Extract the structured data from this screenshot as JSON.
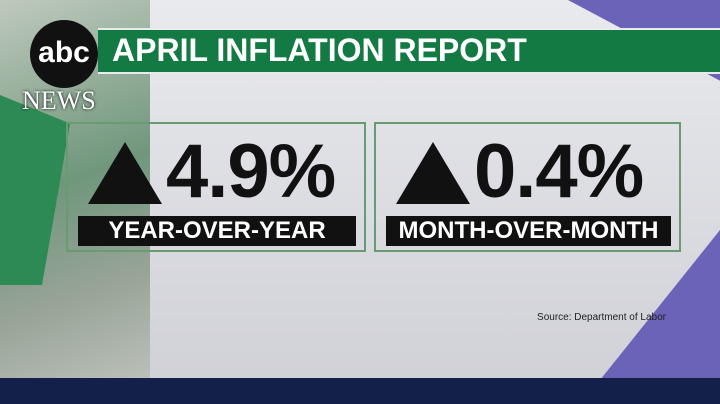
{
  "logo": {
    "name": "abc",
    "sub": "NEWS"
  },
  "header": {
    "title": "APRIL INFLATION REPORT"
  },
  "stats": [
    {
      "value": "4.9%",
      "label": "YEAR-OVER-YEAR"
    },
    {
      "value": "0.4%",
      "label": "MONTH-OVER-MONTH"
    }
  ],
  "source": "Source: Department of Labor"
}
